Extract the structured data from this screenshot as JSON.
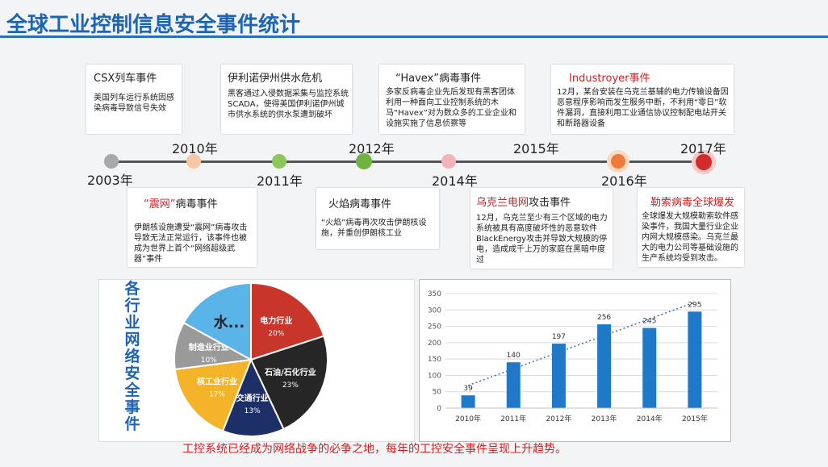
{
  "title": "全球工业控制信息安全事件统计",
  "timeline": {
    "events_top": [
      {
        "title": "CSX列车事件",
        "desc": "美国列车运行系统因感染病毒导致信号失效"
      },
      {
        "title": "伊利诺伊州供水危机",
        "desc": "黑客通过入侵数据采集与监控系统SCADA，使得美国伊利诺伊州城市供水系统的供水泵遭到破坏"
      },
      {
        "title": "“Havex”病毒事件",
        "desc": "多家反病毒企业先后发现有黑客团体利用一种面向工业控制系统的木马“Havex”对为数众多的工业企业和设施实施了信息侦察等"
      },
      {
        "title": "Industroyer事件",
        "desc": "12月，某台安装在乌克兰基辅的电力传输设备因恶意程序影响而发生服务中断，不利用“零日”软件漏洞，直接利用工业通信协议控制配电站开关和断路器设备"
      }
    ],
    "events_bottom": [
      {
        "title_red": "“震网”",
        "title_rest": "病毒事件",
        "desc": "伊朗核设施遭受“震网”病毒攻击导致无法正常运行，该事件也被成为世界上首个“网络超级武器”事件"
      },
      {
        "title_red": "",
        "title_rest": "火焰病毒事件",
        "desc": "“火焰”病毒再次攻击伊朗核设施，并重创伊朗核工业"
      },
      {
        "title_red": "乌克兰电网",
        "title_rest": "攻击事件",
        "desc": "12月，乌克兰至少有三个区域的电力系统被具有高度破坏性的恶意软件BlackEnergy攻击并导致大规模的停电，造成成千上万的家庭在黑暗中度过"
      },
      {
        "title_red": "勒索病毒全球爆发",
        "title_rest": "",
        "desc": "全球爆发大规模勒索软件感染事件，我国大量行业企业内网大规模感染。乌克兰最大的电力公司等基础设施的生产系统均受到攻击。"
      }
    ],
    "years_below": [
      "2003年",
      "2011年",
      "2014年",
      "2016年"
    ],
    "years_above": [
      "2010年",
      "2012年",
      "2015年",
      "2017年"
    ]
  },
  "pie": {
    "vertical_title": [
      "各",
      "行",
      "业",
      "网",
      "络",
      "安",
      "全",
      "事",
      "件"
    ],
    "slices": [
      {
        "name": "电力行业",
        "pct": "20%",
        "value": 20,
        "color": "#c8352b"
      },
      {
        "name": "石油/石化行业",
        "pct": "23%",
        "value": 23,
        "color": "#262626"
      },
      {
        "name": "交通行业",
        "pct": "13%",
        "value": 13,
        "color": "#1c2f66"
      },
      {
        "name": "核工业行业",
        "pct": "17%",
        "value": 17,
        "color": "#f4b42a"
      },
      {
        "name": "制造业行业",
        "pct": "10%",
        "value": 10,
        "color": "#9a9a9a"
      },
      {
        "name": "水...",
        "pct": "",
        "value": 17,
        "color": "#5bb4e8"
      }
    ]
  },
  "chart_data": {
    "type": "bar",
    "categories": [
      "2010年",
      "2011年",
      "2012年",
      "2013年",
      "2014年",
      "2015年"
    ],
    "values": [
      39,
      140,
      197,
      256,
      245,
      295
    ],
    "ylim": [
      0,
      350
    ],
    "yticks": [
      "0",
      "50",
      "100",
      "150",
      "200",
      "250",
      "300",
      "350"
    ],
    "trendline": true,
    "grid": true,
    "bar_color": "#1f78c8"
  },
  "footer": "工控系统已经成为网络战争的必争之地，每年的工控安全事件呈现上升趋势。"
}
